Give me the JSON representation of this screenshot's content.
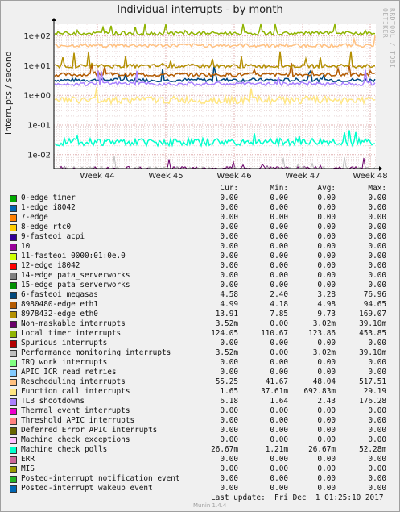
{
  "title": "Individual interrupts - by month",
  "side_credit": "RRDTOOL / TOBI OETIKER",
  "ylabel": "interrupts / second",
  "legend_header": {
    "cur": "Cur:",
    "min": "Min:",
    "avg": "Avg:",
    "max": "Max:"
  },
  "footer": "Last update:  Fri Dec  1 01:25:10 2017",
  "version": "Munin 1.4.4",
  "chart_data": {
    "type": "line",
    "title": "Individual interrupts - by month",
    "ylabel": "interrupts / second",
    "yscale": "log",
    "ylim": [
      0.0034,
      250
    ],
    "y_ticks": [
      {
        "value": 0.01,
        "label": "1e-02"
      },
      {
        "value": 0.1,
        "label": "1e-01"
      },
      {
        "value": 1,
        "label": "1e+00"
      },
      {
        "value": 10,
        "label": "1e+01"
      },
      {
        "value": 100,
        "label": "1e+02"
      }
    ],
    "x_ticks": [
      "Week 44",
      "Week 45",
      "Week 46",
      "Week 47",
      "Week 48"
    ],
    "grid": true,
    "series": [
      {
        "name": "0-edge timer",
        "color": "#00aa00",
        "cur": "0.00",
        "min": "0.00",
        "avg": "0.00",
        "max": "0.00"
      },
      {
        "name": "1-edge i8042",
        "color": "#0066b3",
        "cur": "0.00",
        "min": "0.00",
        "avg": "0.00",
        "max": "0.00"
      },
      {
        "name": "7-edge",
        "color": "#ff8000",
        "cur": "0.00",
        "min": "0.00",
        "avg": "0.00",
        "max": "0.00"
      },
      {
        "name": "8-edge rtc0",
        "color": "#ffcc00",
        "cur": "0.00",
        "min": "0.00",
        "avg": "0.00",
        "max": "0.00"
      },
      {
        "name": "9-fasteoi acpi",
        "color": "#330099",
        "cur": "0.00",
        "min": "0.00",
        "avg": "0.00",
        "max": "0.00"
      },
      {
        "name": "10",
        "color": "#990099",
        "cur": "0.00",
        "min": "0.00",
        "avg": "0.00",
        "max": "0.00"
      },
      {
        "name": "11-fasteoi 0000:01:0e.0",
        "color": "#ccff00",
        "cur": "0.00",
        "min": "0.00",
        "avg": "0.00",
        "max": "0.00"
      },
      {
        "name": "12-edge i8042",
        "color": "#ff0000",
        "cur": "0.00",
        "min": "0.00",
        "avg": "0.00",
        "max": "0.00"
      },
      {
        "name": "14-edge pata_serverworks",
        "color": "#808080",
        "cur": "0.00",
        "min": "0.00",
        "avg": "0.00",
        "max": "0.00"
      },
      {
        "name": "15-edge pata_serverworks",
        "color": "#008f00",
        "cur": "0.00",
        "min": "0.00",
        "avg": "0.00",
        "max": "0.00"
      },
      {
        "name": "6-fasteoi megasas",
        "color": "#00487d",
        "cur": "4.58",
        "min": "2.40",
        "avg": "3.28",
        "max": "76.96"
      },
      {
        "name": "8980480-edge eth1",
        "color": "#b35a00",
        "cur": "4.99",
        "min": "4.18",
        "avg": "4.98",
        "max": "94.65"
      },
      {
        "name": "8978432-edge eth0",
        "color": "#b38f00",
        "cur": "13.91",
        "min": "7.85",
        "avg": "9.73",
        "max": "169.07"
      },
      {
        "name": "Non-maskable interrupts",
        "color": "#6b006b",
        "cur": "3.52m",
        "min": "0.00",
        "avg": "3.02m",
        "max": "39.10m"
      },
      {
        "name": "Local timer interrupts",
        "color": "#8fb300",
        "cur": "124.05",
        "min": "110.67",
        "avg": "123.86",
        "max": "453.85"
      },
      {
        "name": "Spurious interrupts",
        "color": "#b30000",
        "cur": "0.00",
        "min": "0.00",
        "avg": "0.00",
        "max": "0.00"
      },
      {
        "name": "Performance monitoring interrupts",
        "color": "#bebebe",
        "cur": "3.52m",
        "min": "0.00",
        "avg": "3.02m",
        "max": "39.10m"
      },
      {
        "name": "IRQ work interrupts",
        "color": "#80ff80",
        "cur": "0.00",
        "min": "0.00",
        "avg": "0.00",
        "max": "0.00"
      },
      {
        "name": "APIC ICR read retries",
        "color": "#80c9ff",
        "cur": "0.00",
        "min": "0.00",
        "avg": "0.00",
        "max": "0.00"
      },
      {
        "name": "Rescheduling interrupts",
        "color": "#ffc080",
        "cur": "55.25",
        "min": "41.67",
        "avg": "48.04",
        "max": "517.51"
      },
      {
        "name": "Function call interrupts",
        "color": "#ffe680",
        "cur": "1.65",
        "min": "37.61m",
        "avg": "692.83m",
        "max": "29.19"
      },
      {
        "name": "TLB shootdowns",
        "color": "#aa80ff",
        "cur": "6.18",
        "min": "1.64",
        "avg": "2.43",
        "max": "176.28"
      },
      {
        "name": "Thermal event interrupts",
        "color": "#ee00cc",
        "cur": "0.00",
        "min": "0.00",
        "avg": "0.00",
        "max": "0.00"
      },
      {
        "name": "Threshold APIC interrupts",
        "color": "#ff8080",
        "cur": "0.00",
        "min": "0.00",
        "avg": "0.00",
        "max": "0.00"
      },
      {
        "name": "Deferred Error APIC interrupts",
        "color": "#666600",
        "cur": "0.00",
        "min": "0.00",
        "avg": "0.00",
        "max": "0.00"
      },
      {
        "name": "Machine check exceptions",
        "color": "#ffbfff",
        "cur": "0.00",
        "min": "0.00",
        "avg": "0.00",
        "max": "0.00"
      },
      {
        "name": "Machine check polls",
        "color": "#00ffcc",
        "cur": "26.67m",
        "min": "1.21m",
        "avg": "26.67m",
        "max": "52.28m"
      },
      {
        "name": "ERR",
        "color": "#cc6699",
        "cur": "0.00",
        "min": "0.00",
        "avg": "0.00",
        "max": "0.00"
      },
      {
        "name": "MIS",
        "color": "#999900",
        "cur": "0.00",
        "min": "0.00",
        "avg": "0.00",
        "max": "0.00"
      },
      {
        "name": "Posted-interrupt notification event",
        "color": "#24b324",
        "cur": "0.00",
        "min": "0.00",
        "avg": "0.00",
        "max": "0.00"
      },
      {
        "name": "Posted-interrupt wakeup event",
        "color": "#0066b3",
        "cur": "0.00",
        "min": "0.00",
        "avg": "0.00",
        "max": "0.00"
      }
    ]
  }
}
